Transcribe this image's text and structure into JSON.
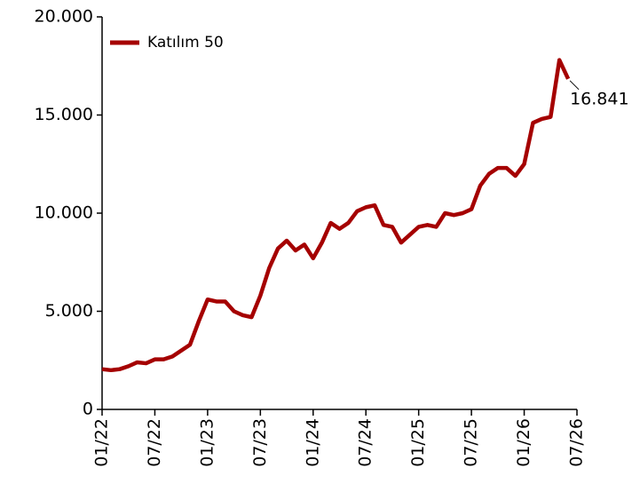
{
  "chart_data": {
    "type": "line",
    "categories": [
      "01/22",
      null,
      null,
      null,
      null,
      null,
      "07/22",
      null,
      null,
      null,
      null,
      null,
      "01/23",
      null,
      null,
      null,
      null,
      null,
      "07/23",
      null,
      null,
      null,
      null,
      null,
      "01/24",
      null,
      null,
      null,
      null,
      null,
      "07/24",
      null,
      null,
      null,
      null,
      null,
      "01/25",
      null,
      null,
      null,
      null,
      null,
      "07/25",
      null,
      null,
      null,
      null,
      null,
      "01/26",
      null,
      null,
      null,
      null,
      null,
      "07/26"
    ],
    "series": [
      {
        "name": "Katılım 50",
        "color": "#a50000",
        "values": [
          2050,
          2000,
          2050,
          2200,
          2400,
          2350,
          2550,
          2550,
          2700,
          3000,
          3300,
          4500,
          5600,
          5500,
          5500,
          5000,
          4800,
          4700,
          5800,
          7200,
          8200,
          8600,
          8100,
          8400,
          7700,
          8500,
          9500,
          9200,
          9500,
          10100,
          10300,
          10400,
          9400,
          9300,
          8500,
          8900,
          9300,
          9400,
          9300,
          10000,
          9900,
          10000,
          10200,
          11400,
          12000,
          12300,
          12300,
          11900,
          12500,
          14600,
          14800,
          14900,
          17800,
          16841,
          null
        ],
        "value_labels": [
          null,
          null,
          null,
          null,
          null,
          null,
          null,
          null,
          null,
          null,
          null,
          null,
          null,
          null,
          null,
          null,
          null,
          null,
          null,
          null,
          null,
          null,
          null,
          null,
          null,
          null,
          null,
          null,
          null,
          null,
          null,
          null,
          null,
          null,
          null,
          null,
          null,
          null,
          null,
          null,
          null,
          null,
          null,
          null,
          null,
          null,
          null,
          null,
          null,
          null,
          null,
          null,
          null,
          "16.841",
          null
        ]
      }
    ],
    "ylim": [
      0,
      20000
    ],
    "yticks": [
      0,
      {
        "value": 5000,
        "label": "5.000"
      },
      {
        "value": 10000,
        "label": "10.000"
      },
      {
        "value": 15000,
        "label": "15.000"
      },
      {
        "value": 20000,
        "label": "20.000"
      }
    ],
    "legend": "top-left",
    "grid": false
  }
}
